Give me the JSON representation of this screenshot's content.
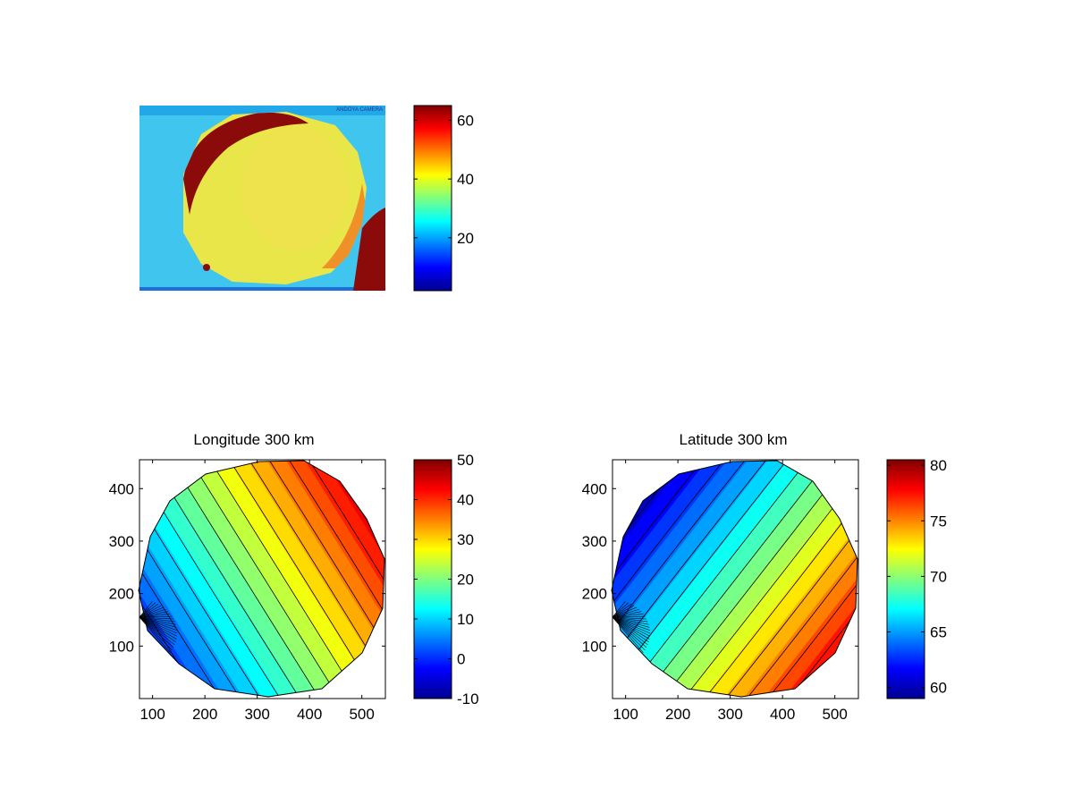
{
  "chart_data": [
    {
      "type": "heatmap",
      "subject": "raw camera image",
      "title": "",
      "overlay_text": "ANDOYA CAMERA",
      "axes_visible": false,
      "colormap": "jet",
      "colorbar": {
        "min": 2,
        "max": 65,
        "ticks": [
          20,
          40,
          60
        ]
      }
    },
    {
      "type": "heatmap",
      "title": "Longitude 300 km",
      "xlabel": "",
      "ylabel": "",
      "xlim": [
        75,
        545
      ],
      "ylim": [
        0,
        455
      ],
      "xticks": [
        100,
        200,
        300,
        400,
        500
      ],
      "yticks": [
        100,
        200,
        300,
        400
      ],
      "colormap": "jet",
      "contours": true,
      "colorbar": {
        "min": -10,
        "max": 50,
        "ticks": [
          -10,
          0,
          10,
          20,
          30,
          40,
          50
        ]
      },
      "value_range_in_disk": [
        0,
        45
      ]
    },
    {
      "type": "heatmap",
      "title": "Latitude 300 km",
      "xlabel": "",
      "ylabel": "",
      "xlim": [
        75,
        545
      ],
      "ylim": [
        0,
        455
      ],
      "xticks": [
        100,
        200,
        300,
        400,
        500
      ],
      "yticks": [
        100,
        200,
        300,
        400
      ],
      "colormap": "jet",
      "contours": true,
      "colorbar": {
        "min": 59,
        "max": 80.5,
        "ticks": [
          60,
          65,
          70,
          75,
          80
        ]
      },
      "value_range_in_disk": [
        60,
        78
      ]
    }
  ]
}
